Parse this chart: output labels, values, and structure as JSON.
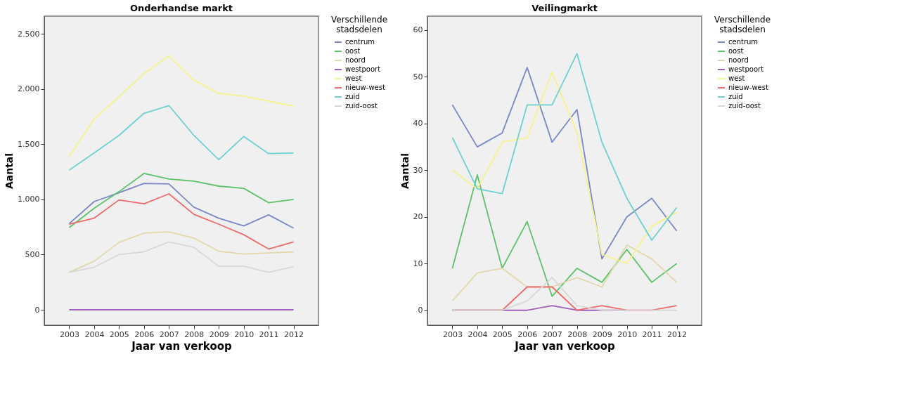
{
  "chart_data": [
    {
      "type": "line",
      "title": "Onderhandse markt",
      "xlabel": "Jaar van verkoop",
      "ylabel": "Aantal",
      "legend_title": "Verschillende stadsdelen",
      "legend": "top right",
      "grid": false,
      "categories": [
        "2003",
        "2004",
        "2005",
        "2006",
        "2007",
        "2008",
        "2009",
        "2010",
        "2011",
        "2012"
      ],
      "ylim": [
        -140,
        2660
      ],
      "yticks": [
        0,
        {
          "value": 500,
          "label": "500"
        },
        {
          "value": 1000,
          "label": "1.000"
        },
        {
          "value": 1500,
          "label": "1.500"
        },
        {
          "value": 2000,
          "label": "2.000"
        },
        {
          "value": 2500,
          "label": "2.500"
        }
      ],
      "series": [
        {
          "name": "centrum",
          "color": "#7b87c6",
          "values": [
            780,
            980,
            1060,
            1145,
            1140,
            930,
            830,
            760,
            860,
            740
          ]
        },
        {
          "name": "oost",
          "color": "#5cc26a",
          "values": [
            745,
            920,
            1070,
            1235,
            1185,
            1165,
            1120,
            1100,
            970,
            1000
          ]
        },
        {
          "name": "noord",
          "color": "#e2d8aa",
          "values": [
            340,
            440,
            610,
            695,
            705,
            650,
            530,
            505,
            515,
            525
          ]
        },
        {
          "name": "westpoort",
          "color": "#a060b8",
          "values": [
            0,
            0,
            0,
            0,
            0,
            0,
            0,
            0,
            0,
            0
          ]
        },
        {
          "name": "west",
          "color": "#f6f28c",
          "values": [
            1390,
            1730,
            1930,
            2140,
            2300,
            2080,
            1960,
            1935,
            1890,
            1845
          ]
        },
        {
          "name": "nieuw-west",
          "color": "#ef6a6a",
          "values": [
            775,
            830,
            995,
            960,
            1050,
            865,
            775,
            680,
            550,
            615
          ]
        },
        {
          "name": "zuid",
          "color": "#6fd0d0",
          "values": [
            1265,
            1420,
            1580,
            1780,
            1850,
            1580,
            1360,
            1570,
            1415,
            1420
          ]
        },
        {
          "name": "zuid-oost",
          "color": "#d8d8d8",
          "values": [
            340,
            385,
            500,
            525,
            615,
            565,
            395,
            395,
            340,
            390
          ]
        }
      ]
    },
    {
      "type": "line",
      "title": "Veilingmarkt",
      "xlabel": "Jaar van verkoop",
      "ylabel": "Aantal",
      "legend_title": "Verschillende stadsdelen",
      "legend": "top right",
      "grid": false,
      "categories": [
        "2003",
        "2004",
        "2005",
        "2006",
        "2007",
        "2008",
        "2009",
        "2010",
        "2011",
        "2012"
      ],
      "ylim": [
        -3.2,
        63
      ],
      "yticks": [
        0,
        10,
        20,
        30,
        40,
        50,
        60
      ],
      "series": [
        {
          "name": "centrum",
          "color": "#7b87c6",
          "values": [
            44,
            35,
            38,
            52,
            36,
            43,
            11,
            20,
            24,
            17
          ]
        },
        {
          "name": "oost",
          "color": "#5cc26a",
          "values": [
            9,
            29,
            9,
            19,
            3,
            9,
            6,
            13,
            6,
            10
          ]
        },
        {
          "name": "noord",
          "color": "#e2d8aa",
          "values": [
            2,
            8,
            9,
            5,
            5,
            7,
            5,
            14,
            11,
            6
          ]
        },
        {
          "name": "westpoort",
          "color": "#a060b8",
          "values": [
            0,
            0,
            0,
            0,
            1,
            0,
            0,
            0,
            null,
            null
          ]
        },
        {
          "name": "west",
          "color": "#f6f28c",
          "values": [
            30,
            26,
            36,
            37,
            51,
            38,
            12,
            10,
            18,
            21
          ]
        },
        {
          "name": "nieuw-west",
          "color": "#ef6a6a",
          "values": [
            0,
            0,
            0,
            5,
            5,
            0,
            1,
            0,
            0,
            1
          ]
        },
        {
          "name": "zuid",
          "color": "#6fd0d0",
          "values": [
            37,
            26,
            25,
            44,
            44,
            55,
            36,
            24,
            15,
            22
          ]
        },
        {
          "name": "zuid-oost",
          "color": "#d8d8d8",
          "values": [
            0,
            0,
            0,
            2,
            7,
            1,
            0,
            0,
            0,
            0
          ]
        }
      ]
    }
  ]
}
